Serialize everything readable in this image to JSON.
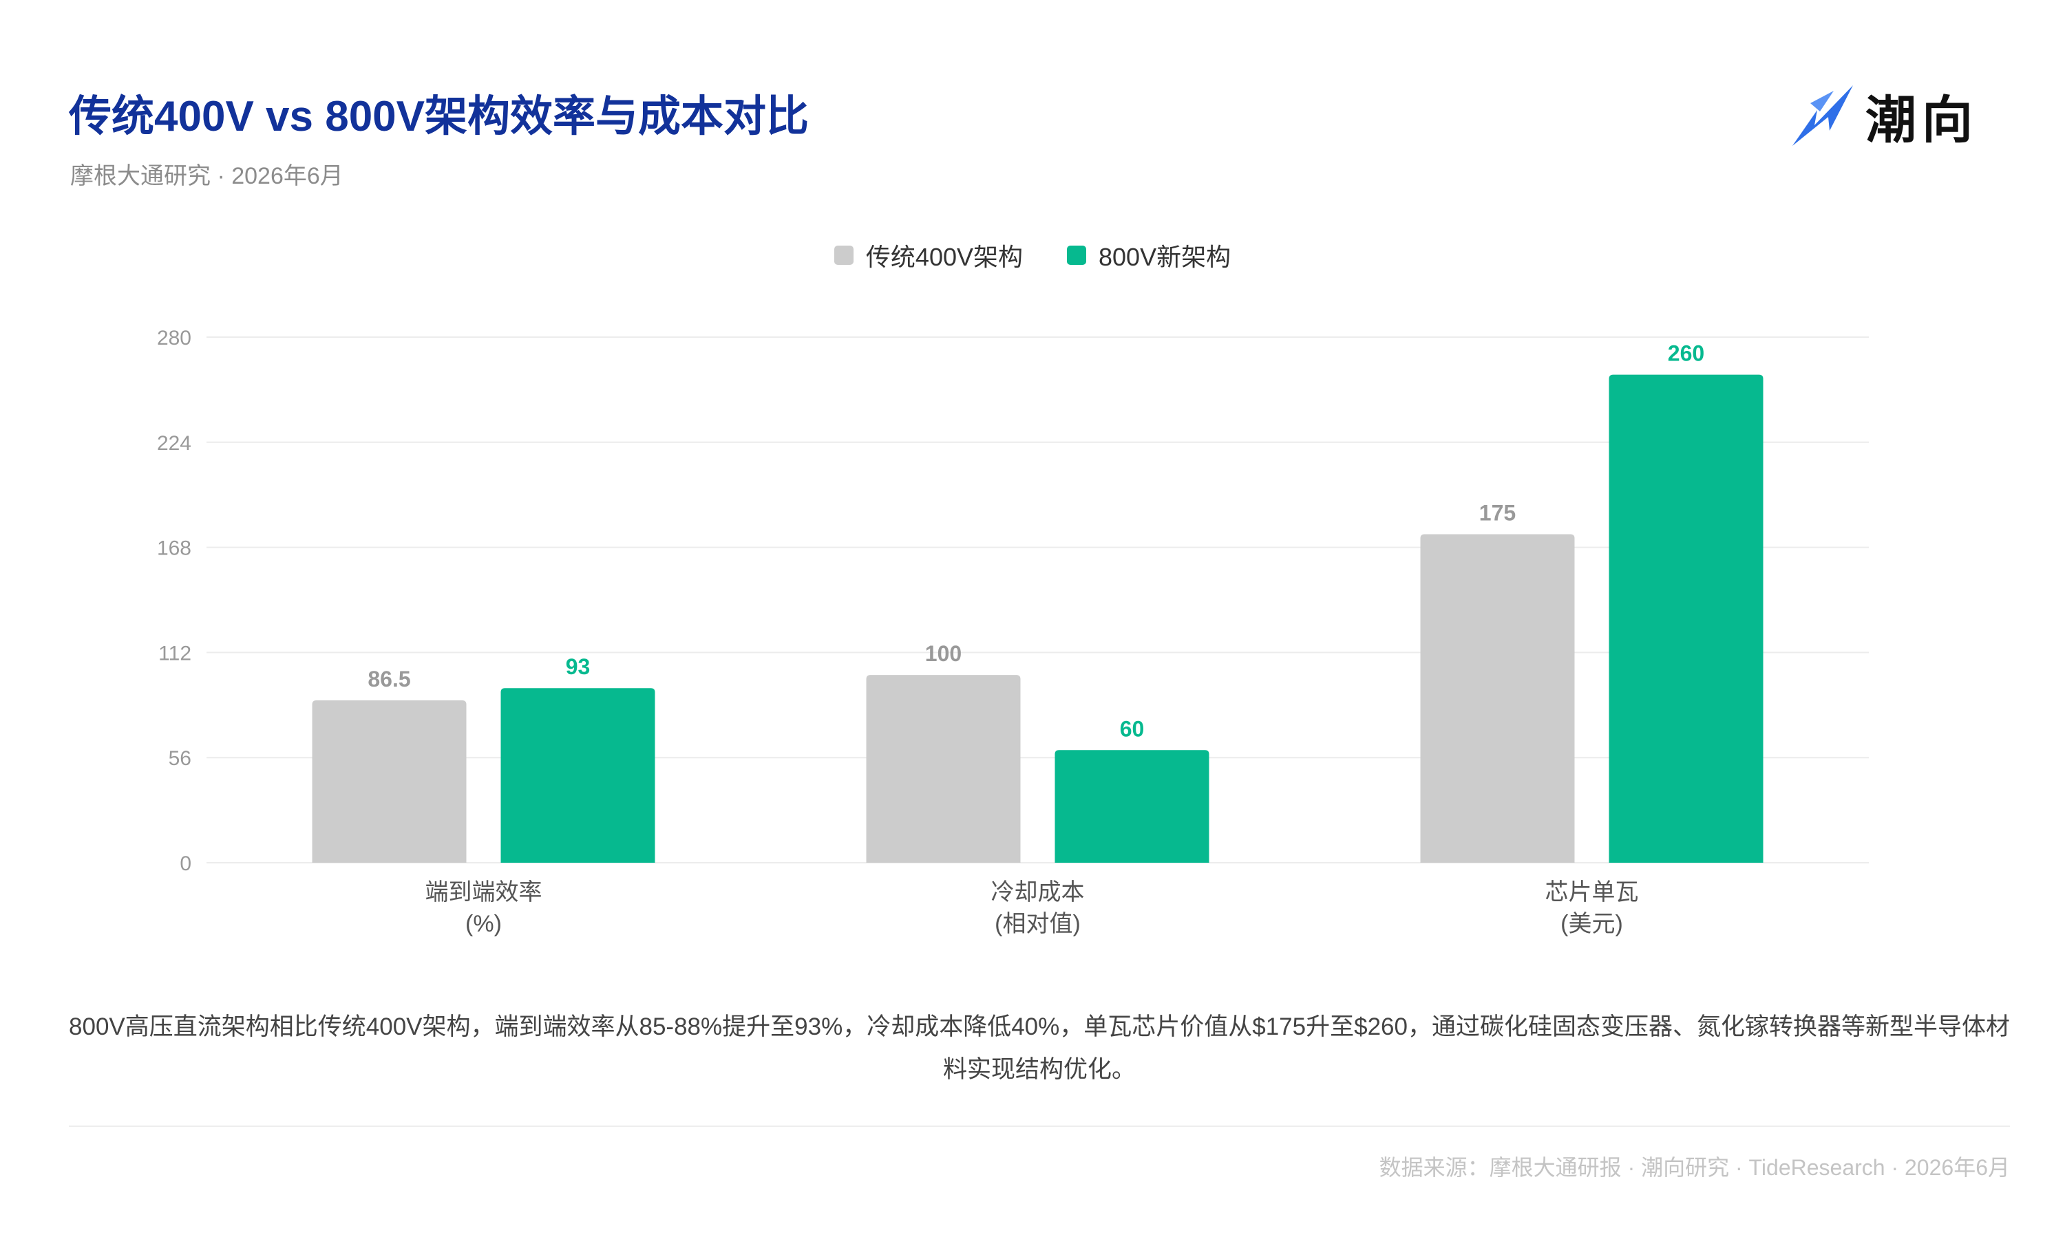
{
  "header": {
    "title": "传统400V vs 800V架构效率与成本对比",
    "subtitle": "摩根大通研究 · 2026年6月"
  },
  "logo": {
    "text": "潮向",
    "icon": "arrow-logo-icon",
    "color": "#2f6fe8"
  },
  "colors": {
    "series_400v": "#cccccc",
    "series_800v": "#06b98f",
    "label_400v": "#999999",
    "label_800v": "#06b98f",
    "grid": "#ececec",
    "title": "#12329a"
  },
  "chart_data": {
    "type": "bar",
    "categories": [
      [
        "端到端效率",
        "(%)"
      ],
      [
        "冷却成本",
        "(相对值)"
      ],
      [
        "芯片单瓦",
        "(美元)"
      ]
    ],
    "series": [
      {
        "name": "传统400V架构",
        "values": [
          86.5,
          100,
          175
        ],
        "labels": [
          "86.5",
          "100",
          "175"
        ]
      },
      {
        "name": "800V新架构",
        "values": [
          93,
          60,
          260
        ],
        "labels": [
          "93",
          "60",
          "260"
        ]
      }
    ],
    "y_ticks": [
      0,
      56,
      112,
      168,
      224,
      280
    ],
    "ylim": [
      0,
      280
    ],
    "grid": true,
    "legend": "top-center",
    "title": "",
    "xlabel": "",
    "ylabel": ""
  },
  "caption": "800V高压直流架构相比传统400V架构，端到端效率从85-88%提升至93%，冷却成本降低40%，单瓦芯片价值从$175升至$260，通过碳化硅固态变压器、氮化镓转换器等新型半导体材料实现结构优化。",
  "footer": {
    "source": "数据来源：摩根大通研报 · 潮向研究 · TideResearch · 2026年6月"
  }
}
